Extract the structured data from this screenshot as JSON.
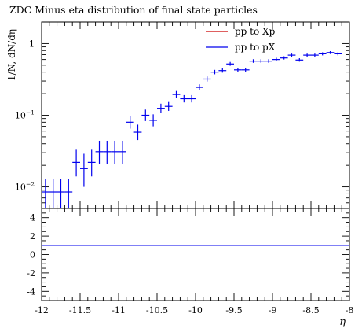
{
  "chart_data": {
    "type": "scatter",
    "title": "ZDC Minus eta distribution of final state particles",
    "xlabel": "η",
    "ylabel": "1/N, dN/dη",
    "xlim": [
      -12,
      -8
    ],
    "ylim_log": [
      0.005,
      2
    ],
    "yscale": "log",
    "x_ticks": [
      {
        "v": -12,
        "label": "-12"
      },
      {
        "v": -11.5,
        "label": "-11.5"
      },
      {
        "v": -11,
        "label": "-11"
      },
      {
        "v": -10.5,
        "label": "-10.5"
      },
      {
        "v": -10,
        "label": "-10"
      },
      {
        "v": -9.5,
        "label": "-9.5"
      },
      {
        "v": -9,
        "label": "-9"
      },
      {
        "v": -8.5,
        "label": "-8.5"
      },
      {
        "v": -8,
        "label": "-8"
      }
    ],
    "y_ticks": [
      {
        "v": 1,
        "base": "1",
        "exp": ""
      },
      {
        "v": 0.1,
        "base": "10",
        "exp": "−1"
      },
      {
        "v": 0.01,
        "base": "10",
        "exp": "−2"
      }
    ],
    "legend": {
      "placement": "top-right",
      "entries": [
        {
          "label": "pp to Xp",
          "color": "#cc0000"
        },
        {
          "label": "pp to pX",
          "color": "#0000ee"
        }
      ]
    },
    "series": [
      {
        "name": "pp to pX",
        "color": "#0000ee",
        "bin_halfwidth": 0.05,
        "points": [
          {
            "x": -11.95,
            "y": 0.0085,
            "lo": 0.005,
            "hi": 0.013
          },
          {
            "x": -11.85,
            "y": 0.0085,
            "lo": 0.005,
            "hi": 0.013
          },
          {
            "x": -11.75,
            "y": 0.0085,
            "lo": 0.005,
            "hi": 0.013
          },
          {
            "x": -11.65,
            "y": 0.0085,
            "lo": 0.005,
            "hi": 0.013
          },
          {
            "x": -11.55,
            "y": 0.022,
            "lo": 0.014,
            "hi": 0.033
          },
          {
            "x": -11.45,
            "y": 0.018,
            "lo": 0.01,
            "hi": 0.029
          },
          {
            "x": -11.35,
            "y": 0.022,
            "lo": 0.014,
            "hi": 0.033
          },
          {
            "x": -11.25,
            "y": 0.031,
            "lo": 0.021,
            "hi": 0.044
          },
          {
            "x": -11.15,
            "y": 0.031,
            "lo": 0.021,
            "hi": 0.044
          },
          {
            "x": -11.05,
            "y": 0.031,
            "lo": 0.021,
            "hi": 0.044
          },
          {
            "x": -10.95,
            "y": 0.031,
            "lo": 0.021,
            "hi": 0.044
          },
          {
            "x": -10.85,
            "y": 0.08,
            "lo": 0.065,
            "hi": 0.097
          },
          {
            "x": -10.75,
            "y": 0.058,
            "lo": 0.045,
            "hi": 0.074
          },
          {
            "x": -10.65,
            "y": 0.1,
            "lo": 0.083,
            "hi": 0.12
          },
          {
            "x": -10.55,
            "y": 0.085,
            "lo": 0.07,
            "hi": 0.103
          },
          {
            "x": -10.45,
            "y": 0.125,
            "lo": 0.108,
            "hi": 0.145
          },
          {
            "x": -10.35,
            "y": 0.133,
            "lo": 0.115,
            "hi": 0.153
          },
          {
            "x": -10.25,
            "y": 0.195,
            "lo": 0.175,
            "hi": 0.218
          },
          {
            "x": -10.15,
            "y": 0.17,
            "lo": 0.151,
            "hi": 0.191
          },
          {
            "x": -10.05,
            "y": 0.17,
            "lo": 0.151,
            "hi": 0.191
          },
          {
            "x": -9.95,
            "y": 0.245,
            "lo": 0.222,
            "hi": 0.27
          },
          {
            "x": -9.85,
            "y": 0.32,
            "lo": 0.295,
            "hi": 0.348
          },
          {
            "x": -9.75,
            "y": 0.4,
            "lo": 0.373,
            "hi": 0.43
          },
          {
            "x": -9.65,
            "y": 0.42,
            "lo": 0.393,
            "hi": 0.45
          },
          {
            "x": -9.55,
            "y": 0.52,
            "lo": 0.49,
            "hi": 0.555
          },
          {
            "x": -9.45,
            "y": 0.43,
            "lo": 0.402,
            "hi": 0.46
          },
          {
            "x": -9.35,
            "y": 0.43,
            "lo": 0.402,
            "hi": 0.46
          },
          {
            "x": -9.25,
            "y": 0.57,
            "lo": 0.54,
            "hi": 0.605
          },
          {
            "x": -9.15,
            "y": 0.57,
            "lo": 0.54,
            "hi": 0.605
          },
          {
            "x": -9.05,
            "y": 0.57,
            "lo": 0.54,
            "hi": 0.605
          },
          {
            "x": -8.95,
            "y": 0.6,
            "lo": 0.57,
            "hi": 0.635
          },
          {
            "x": -8.85,
            "y": 0.63,
            "lo": 0.6,
            "hi": 0.665
          },
          {
            "x": -8.75,
            "y": 0.69,
            "lo": 0.655,
            "hi": 0.725
          },
          {
            "x": -8.65,
            "y": 0.59,
            "lo": 0.56,
            "hi": 0.625
          },
          {
            "x": -8.55,
            "y": 0.69,
            "lo": 0.655,
            "hi": 0.725
          },
          {
            "x": -8.45,
            "y": 0.69,
            "lo": 0.655,
            "hi": 0.725
          },
          {
            "x": -8.35,
            "y": 0.72,
            "lo": 0.685,
            "hi": 0.755
          },
          {
            "x": -8.25,
            "y": 0.75,
            "lo": 0.715,
            "hi": 0.785
          },
          {
            "x": -8.15,
            "y": 0.72,
            "lo": 0.685,
            "hi": 0.755
          }
        ]
      }
    ],
    "ratio_panel": {
      "ylim": [
        -5,
        5
      ],
      "y_ticks": [
        {
          "v": 4,
          "label": "4"
        },
        {
          "v": 2,
          "label": "2"
        },
        {
          "v": 0,
          "label": "0"
        },
        {
          "v": -2,
          "label": "-2"
        },
        {
          "v": -4,
          "label": "-4"
        }
      ],
      "reference_line": 1,
      "line_color": "#0000ee"
    }
  }
}
